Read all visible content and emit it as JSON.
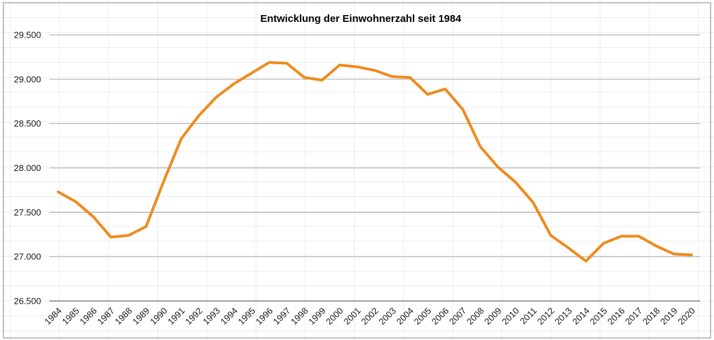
{
  "chart_data": {
    "type": "line",
    "title": "Entwicklung der Einwohnerzahl seit 1984",
    "x": [
      1984,
      1985,
      1986,
      1987,
      1988,
      1989,
      1990,
      1991,
      1992,
      1993,
      1994,
      1995,
      1996,
      1997,
      1998,
      1999,
      2000,
      2001,
      2002,
      2003,
      2004,
      2005,
      2006,
      2007,
      2008,
      2009,
      2010,
      2011,
      2012,
      2013,
      2014,
      2015,
      2016,
      2017,
      2018,
      2019,
      2020
    ],
    "series": [
      {
        "name": "Einwohnerzahl",
        "values": [
          27730,
          27620,
          27450,
          27220,
          27240,
          27340,
          27850,
          28330,
          28590,
          28800,
          28950,
          29070,
          29190,
          29180,
          29020,
          28990,
          29160,
          29140,
          29100,
          29030,
          29020,
          28830,
          28890,
          28660,
          28240,
          28010,
          27840,
          27610,
          27240,
          27100,
          26950,
          27150,
          27230,
          27230,
          27120,
          27030,
          27020
        ]
      }
    ],
    "xlabel": "",
    "ylabel": "",
    "ylim": [
      26500,
      29500
    ],
    "ytick_step": 500,
    "ytick_labels": [
      "26.500",
      "27.000",
      "27.500",
      "28.000",
      "28.500",
      "29.000",
      "29.500"
    ],
    "grid": "horizontal-major",
    "legend": "none",
    "line_color": "#EF8B1E",
    "gridline_color": "#a6a6a6",
    "axis_line_color": "#808080",
    "tick_label_color": "#1a1a1a",
    "chart_border_color": "#ababab",
    "background_grid_color": "#ececec"
  }
}
